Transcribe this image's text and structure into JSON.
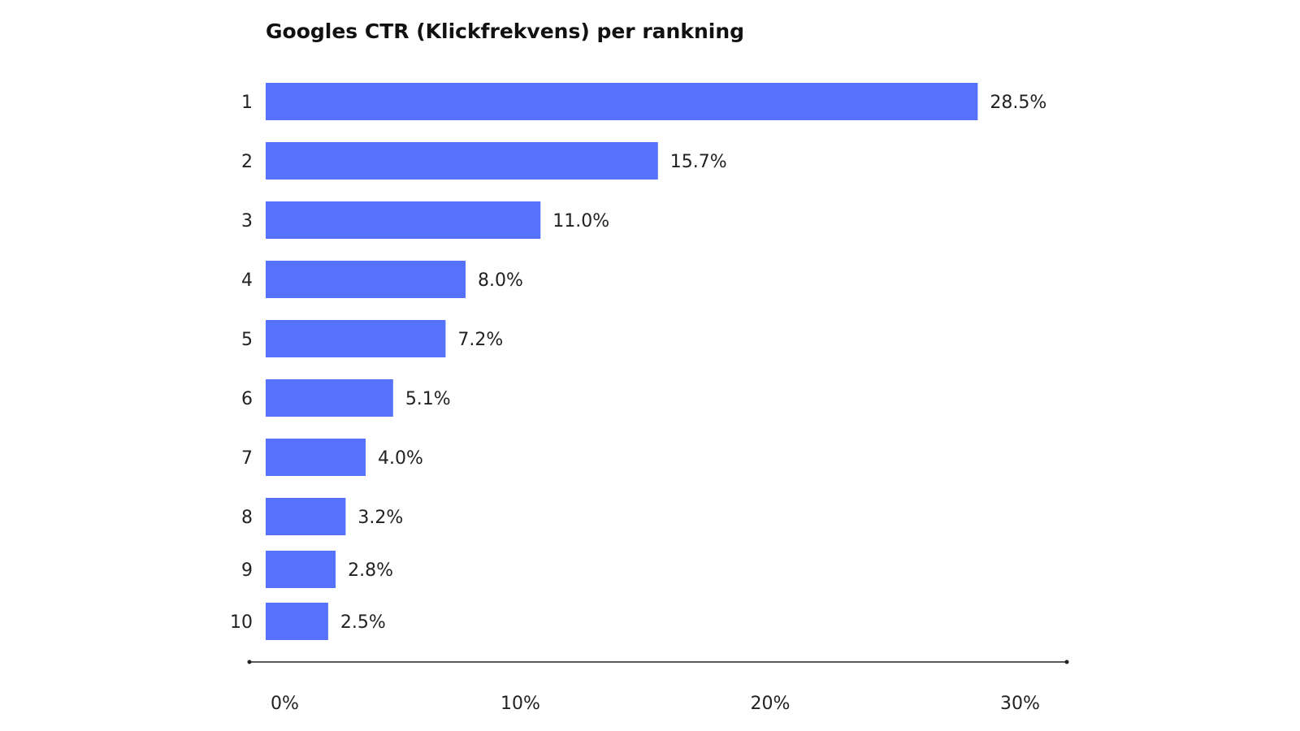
{
  "chart_data": {
    "type": "bar",
    "orientation": "horizontal",
    "title": "Googles CTR (Klickfrekvens) per rankning",
    "categories": [
      "1",
      "2",
      "3",
      "4",
      "5",
      "6",
      "7",
      "8",
      "9",
      "10"
    ],
    "values": [
      28.5,
      15.7,
      11.0,
      8.0,
      7.2,
      5.1,
      4.0,
      3.2,
      2.8,
      2.5
    ],
    "data_labels": [
      "28.5%",
      "15.7%",
      "11.0%",
      "8.0%",
      "7.2%",
      "5.1%",
      "4.0%",
      "3.2%",
      "2.8%",
      "2.5%"
    ],
    "xticks": [
      0,
      10,
      20,
      30
    ],
    "xtick_labels": [
      "0%",
      "10%",
      "20%",
      "30%"
    ],
    "xlim": [
      0,
      30
    ],
    "xlabel": "",
    "ylabel": "",
    "grid": false,
    "legend": "none",
    "bar_color": "#5672fb",
    "axis_color": "#222222"
  }
}
